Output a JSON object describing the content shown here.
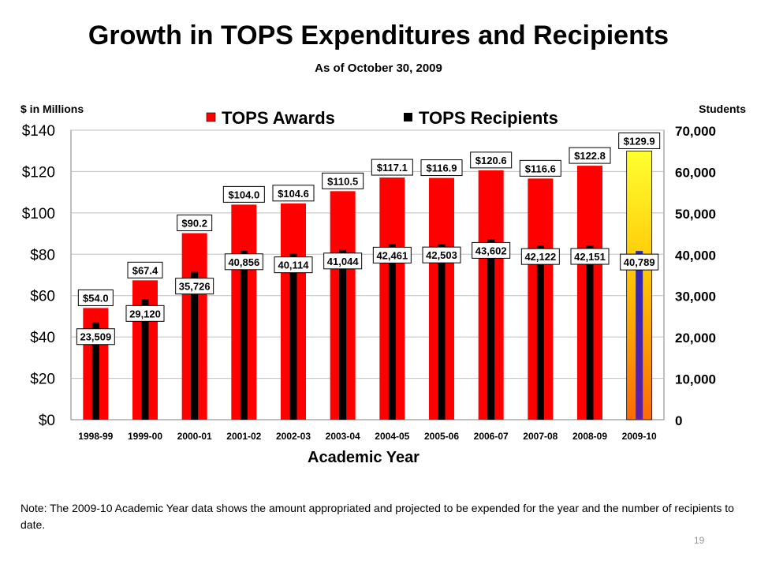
{
  "slide": {
    "title": "Growth in TOPS Expenditures and Recipients",
    "subtitle": "As of October 30, 2009",
    "footnote": "Note: The 2009-10 Academic Year data shows the amount appropriated and projected to be expended for the year and the number of recipients to date.",
    "page_number": "19"
  },
  "chart_data": {
    "type": "bar",
    "xlabel": "Academic Year",
    "ylabel_left": "$ in Millions",
    "ylabel_right": "Students",
    "categories": [
      "1998-99",
      "1999-00",
      "2000-01",
      "2001-02",
      "2002-03",
      "2003-04",
      "2004-05",
      "2005-06",
      "2006-07",
      "2007-08",
      "2008-09",
      "2009-10"
    ],
    "series": [
      {
        "name": "TOPS Awards",
        "axis": "left",
        "color": "#ff0000",
        "highlight_last_color": "#ffd800",
        "values": [
          54.0,
          67.4,
          90.2,
          104.0,
          104.6,
          110.5,
          117.1,
          116.9,
          120.6,
          116.6,
          122.8,
          129.9
        ],
        "labels": [
          "$54.0",
          "$67.4",
          "$90.2",
          "$104.0",
          "$104.6",
          "$110.5",
          "$117.1",
          "$116.9",
          "$120.6",
          "$116.6",
          "$122.8",
          "$129.9"
        ]
      },
      {
        "name": "TOPS Recipients",
        "axis": "right",
        "color": "#000000",
        "highlight_last_color": "#2020a0",
        "values": [
          23509,
          29120,
          35726,
          40856,
          40114,
          41044,
          42461,
          42503,
          43602,
          42122,
          42151,
          40789
        ],
        "labels": [
          "23,509",
          "29,120",
          "35,726",
          "40,856",
          "40,114",
          "41,044",
          "42,461",
          "42,503",
          "43,602",
          "42,122",
          "42,151",
          "40,789"
        ]
      }
    ],
    "left_axis": {
      "min": 0,
      "max": 140,
      "ticks": [
        "$0",
        "$20",
        "$40",
        "$60",
        "$80",
        "$100",
        "$120",
        "$140"
      ]
    },
    "right_axis": {
      "min": 0,
      "max": 70000,
      "ticks": [
        "0",
        "10,000",
        "20,000",
        "30,000",
        "40,000",
        "50,000",
        "60,000",
        "70,000"
      ]
    },
    "grid": true,
    "legend_position": "top"
  }
}
